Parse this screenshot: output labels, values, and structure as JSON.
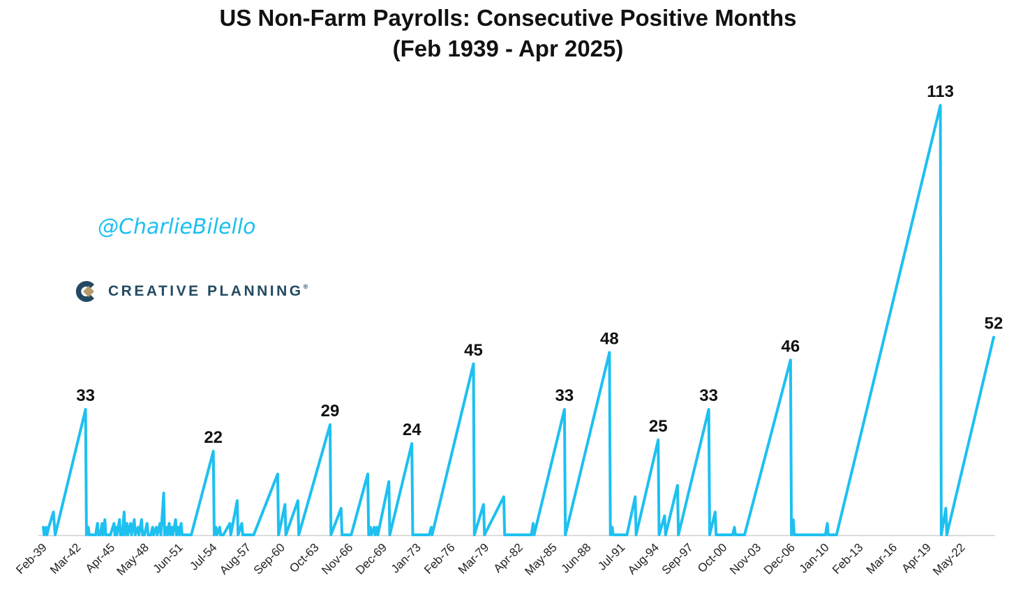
{
  "chart_data": {
    "type": "line",
    "title": "US Non-Farm Payrolls: Consecutive Positive Months",
    "subtitle": "(Feb 1939 - Apr 2025)",
    "xlabel": "",
    "ylabel": "",
    "x_start": "Feb 1939",
    "x_end": "Apr 2025",
    "ylim": [
      0,
      120
    ],
    "grid": false,
    "series_color": "#1ec0f0",
    "tick_labels": [
      "Feb-39",
      "Mar-42",
      "Apr-45",
      "May-48",
      "Jun-51",
      "Jul-54",
      "Aug-57",
      "Sep-60",
      "Oct-63",
      "Nov-66",
      "Dec-69",
      "Jan-73",
      "Feb-76",
      "Mar-79",
      "Apr-82",
      "May-85",
      "Jun-88",
      "Jul-91",
      "Aug-94",
      "Sep-97",
      "Oct-00",
      "Nov-03",
      "Dec-06",
      "Jan-10",
      "Feb-13",
      "Mar-16",
      "Apr-19",
      "May-22"
    ],
    "series": [
      {
        "points": [
          [
            "Feb 1939",
            2
          ],
          [
            "Mar 1939",
            0
          ],
          [
            "May 1939",
            2
          ],
          [
            "Jun 1939",
            0
          ],
          [
            "Aug 1939",
            2
          ],
          [
            "Jan 1940",
            6
          ],
          [
            "Mar 1940",
            0
          ],
          [
            "Apr 1940",
            1
          ],
          [
            "Dec 1942",
            33
          ],
          [
            "Jan 1943",
            0
          ],
          [
            "Mar 1943",
            2
          ],
          [
            "Apr 1943",
            0
          ],
          [
            "Jul 1943",
            0
          ],
          [
            "Nov 1943",
            0
          ],
          [
            "Jan 1944",
            3
          ],
          [
            "Feb 1944",
            0
          ],
          [
            "Apr 1944",
            0
          ],
          [
            "Jun 1944",
            3
          ],
          [
            "Jul 1944",
            0
          ],
          [
            "Sep 1944",
            4
          ],
          [
            "Oct 1944",
            0
          ],
          [
            "Mar 1945",
            0
          ],
          [
            "Jul 1945",
            3
          ],
          [
            "Aug 1945",
            0
          ],
          [
            "Sep 1945",
            2
          ],
          [
            "Oct 1945",
            0
          ],
          [
            "Jan 1946",
            4
          ],
          [
            "Feb 1946",
            0
          ],
          [
            "Apr 1946",
            0
          ],
          [
            "Jun 1946",
            6
          ],
          [
            "Jul 1946",
            0
          ],
          [
            "Sep 1946",
            3
          ],
          [
            "Oct 1946",
            0
          ],
          [
            "Jan 1947",
            3
          ],
          [
            "Feb 1947",
            0
          ],
          [
            "May 1947",
            4
          ],
          [
            "Jun 1947",
            0
          ],
          [
            "Sep 1947",
            2
          ],
          [
            "Oct 1947",
            0
          ],
          [
            "Jan 1948",
            4
          ],
          [
            "Feb 1948",
            0
          ],
          [
            "Apr 1948",
            0
          ],
          [
            "Jul 1948",
            3
          ],
          [
            "Aug 1948",
            0
          ],
          [
            "Nov 1948",
            0
          ],
          [
            "Jan 1949",
            2
          ],
          [
            "Feb 1949",
            0
          ],
          [
            "May 1949",
            2
          ],
          [
            "Jun 1949",
            0
          ],
          [
            "Sep 1949",
            3
          ],
          [
            "Oct 1949",
            0
          ],
          [
            "Jan 1950",
            11
          ],
          [
            "Feb 1950",
            0
          ],
          [
            "Apr 1950",
            2
          ],
          [
            "May 1950",
            0
          ],
          [
            "Jul 1950",
            3
          ],
          [
            "Aug 1950",
            0
          ],
          [
            "Oct 1950",
            2
          ],
          [
            "Nov 1950",
            0
          ],
          [
            "Feb 1951",
            4
          ],
          [
            "Mar 1951",
            0
          ],
          [
            "May 1951",
            2
          ],
          [
            "Jun 1951",
            0
          ],
          [
            "Aug 1951",
            3
          ],
          [
            "Sep 1951",
            0
          ],
          [
            "Jan 1952",
            0
          ],
          [
            "Jul 1952",
            0
          ],
          [
            "Jul 1954",
            22
          ],
          [
            "Aug 1954",
            0
          ],
          [
            "Oct 1954",
            2
          ],
          [
            "Nov 1954",
            0
          ],
          [
            "Feb 1955",
            2
          ],
          [
            "Mar 1955",
            0
          ],
          [
            "Jun 1955",
            0
          ],
          [
            "Jan 1956",
            3
          ],
          [
            "Feb 1956",
            0
          ],
          [
            "Sep 1956",
            9
          ],
          [
            "Oct 1956",
            0
          ],
          [
            "Feb 1957",
            3
          ],
          [
            "Mar 1957",
            0
          ],
          [
            "Mar 1958",
            0
          ],
          [
            "May 1960",
            16
          ],
          [
            "Jun 1960",
            0
          ],
          [
            "Jan 1961",
            8
          ],
          [
            "Feb 1961",
            0
          ],
          [
            "Mar 1962",
            9
          ],
          [
            "Apr 1962",
            0
          ],
          [
            "Feb 1965",
            29
          ],
          [
            "Mar 1965",
            0
          ],
          [
            "Feb 1966",
            7
          ],
          [
            "Mar 1966",
            0
          ],
          [
            "Jan 1967",
            0
          ],
          [
            "Jul 1968",
            16
          ],
          [
            "Aug 1968",
            0
          ],
          [
            "Oct 1968",
            2
          ],
          [
            "Nov 1968",
            0
          ],
          [
            "Feb 1969",
            2
          ],
          [
            "Mar 1969",
            0
          ],
          [
            "May 1969",
            2
          ],
          [
            "Jun 1969",
            0
          ],
          [
            "Jun 1970",
            14
          ],
          [
            "Jul 1970",
            0
          ],
          [
            "Jul 1972",
            24
          ],
          [
            "Aug 1972",
            0
          ],
          [
            "Feb 1974",
            0
          ],
          [
            "Apr 1974",
            2
          ],
          [
            "May 1974",
            0
          ],
          [
            "Feb 1978",
            45
          ],
          [
            "Mar 1978",
            0
          ],
          [
            "Jan 1979",
            8
          ],
          [
            "Feb 1979",
            0
          ],
          [
            "Nov 1980",
            10
          ],
          [
            "Dec 1980",
            0
          ],
          [
            "May 1983",
            0
          ],
          [
            "Jul 1983",
            3
          ],
          [
            "Aug 1983",
            0
          ],
          [
            "May 1986",
            33
          ],
          [
            "Jun 1986",
            0
          ],
          [
            "Jun 1990",
            48
          ],
          [
            "Jul 1990",
            0
          ],
          [
            "Sep 1990",
            2
          ],
          [
            "Oct 1990",
            0
          ],
          [
            "Jan 1992",
            0
          ],
          [
            "Oct 1992",
            10
          ],
          [
            "Nov 1992",
            0
          ],
          [
            "Nov 1994",
            25
          ],
          [
            "Dec 1994",
            0
          ],
          [
            "Jun 1995",
            5
          ],
          [
            "Jul 1995",
            0
          ],
          [
            "Aug 1996",
            13
          ],
          [
            "Sep 1996",
            0
          ],
          [
            "Jun 1999",
            33
          ],
          [
            "Jul 1999",
            0
          ],
          [
            "Jan 2000",
            6
          ],
          [
            "Feb 2000",
            0
          ],
          [
            "Feb 2001",
            0
          ],
          [
            "Apr 2001",
            0
          ],
          [
            "Aug 2001",
            0
          ],
          [
            "Oct 2001",
            2
          ],
          [
            "Nov 2001",
            0
          ],
          [
            "Feb 2002",
            0
          ],
          [
            "Sep 2002",
            0
          ],
          [
            "Nov 2006",
            46
          ],
          [
            "Dec 2006",
            0
          ],
          [
            "Feb 2007",
            4
          ],
          [
            "Mar 2007",
            0
          ],
          [
            "Apr 2008",
            0
          ],
          [
            "Jan 2010",
            0
          ],
          [
            "Mar 2010",
            3
          ],
          [
            "Apr 2010",
            0
          ],
          [
            "Jan 2011",
            0
          ],
          [
            "Jun 2020",
            113
          ],
          [
            "Jul 2020",
            0
          ],
          [
            "Dec 2020",
            7
          ],
          [
            "Jan 2021",
            0
          ],
          [
            "Apr 2025",
            52
          ]
        ]
      }
    ],
    "annotations": [
      {
        "label": "33",
        "x": "Dec 1942",
        "y": 33
      },
      {
        "label": "22",
        "x": "Jul 1954",
        "y": 22
      },
      {
        "label": "29",
        "x": "Feb 1965",
        "y": 29
      },
      {
        "label": "24",
        "x": "Jul 1972",
        "y": 24
      },
      {
        "label": "45",
        "x": "Feb 1978",
        "y": 45
      },
      {
        "label": "33",
        "x": "May 1986",
        "y": 33
      },
      {
        "label": "48",
        "x": "Jun 1990",
        "y": 48
      },
      {
        "label": "25",
        "x": "Nov 1994",
        "y": 25
      },
      {
        "label": "33",
        "x": "Jun 1999",
        "y": 33
      },
      {
        "label": "46",
        "x": "Nov 2006",
        "y": 46
      },
      {
        "label": "113",
        "x": "Jun 2020",
        "y": 113
      },
      {
        "label": "52",
        "x": "Apr 2025",
        "y": 52
      }
    ]
  },
  "watermark": "@CharlieBilello",
  "logo": {
    "text": "CREATIVE PLANNING",
    "mark": "®"
  }
}
